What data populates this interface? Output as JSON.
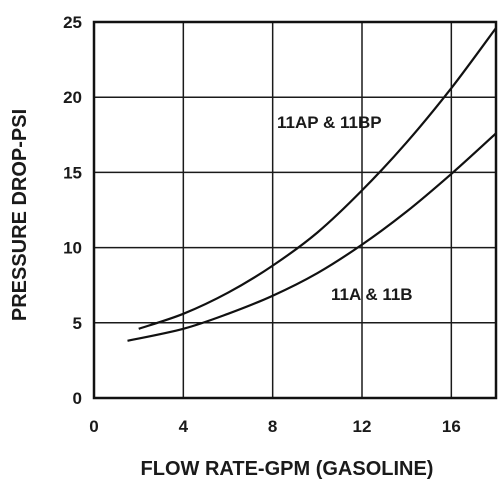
{
  "chart_data": {
    "type": "line",
    "xlabel": "FLOW RATE-GPM (GASOLINE)",
    "ylabel": "PRESSURE DROP-PSI",
    "xlim": [
      0,
      18
    ],
    "ylim": [
      0,
      25
    ],
    "xticks": [
      0,
      4,
      8,
      12,
      16
    ],
    "yticks": [
      0,
      5,
      10,
      15,
      20,
      25
    ],
    "grid": true,
    "series": [
      {
        "name": "11AP & 11BP",
        "x": [
          2,
          4,
          6,
          8,
          10,
          12,
          14,
          16,
          18
        ],
        "y": [
          4.6,
          5.6,
          7.0,
          8.8,
          11.0,
          13.8,
          17.0,
          20.6,
          24.6
        ]
      },
      {
        "name": "11A & 11B",
        "x": [
          1.5,
          4,
          6,
          8,
          10,
          12,
          14,
          16,
          18
        ],
        "y": [
          3.8,
          4.6,
          5.6,
          6.8,
          8.3,
          10.2,
          12.4,
          14.9,
          17.6
        ]
      }
    ]
  }
}
